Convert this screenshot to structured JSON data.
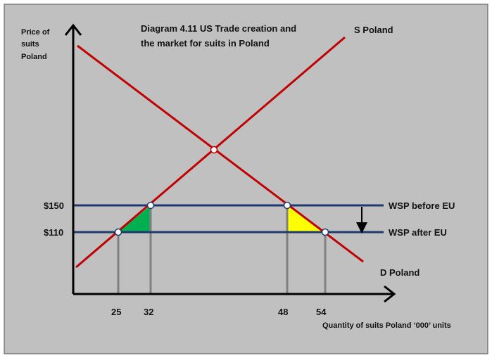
{
  "title": [
    "Diagram  4.11  US Trade  creation  and",
    "the market  for suits in Poland"
  ],
  "y_axis_label": [
    "Price of",
    "suits",
    "Poland"
  ],
  "x_axis_label": "Quantity of suits Poland ‘000’ units",
  "supply_label": "S Poland",
  "demand_label": "D Poland",
  "wsp_before_label": "WSP before EU",
  "wsp_after_label": "WSP after EU",
  "price_ticks": [
    "$150",
    "$110"
  ],
  "quantity_ticks": [
    "25",
    "32",
    "48",
    "54"
  ],
  "colors": {
    "background": "#c0c0c0",
    "curves": "#c00000",
    "price_lines": "#1f3a6e",
    "axes": "#000000",
    "drop_lines": "#808080",
    "triangle_left": "#00b050",
    "triangle_right": "#ffff00"
  }
}
